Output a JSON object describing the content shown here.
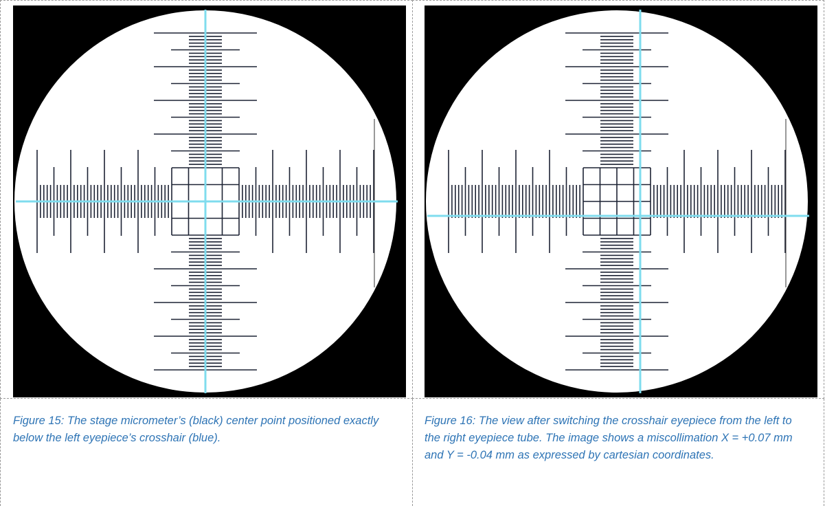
{
  "figures": [
    {
      "caption": "Figure 15: The stage micrometer’s (black) center point positioned exactly below the left eyepiece’s crosshair (blue)."
    },
    {
      "caption": "Figure 16: The view after switching the crosshair eyepiece from the left to the right eyepiece tube. The image shows a miscollimation X = +0.07 mm and Y = -0.04 mm as expressed by cartesian coordinates."
    }
  ]
}
